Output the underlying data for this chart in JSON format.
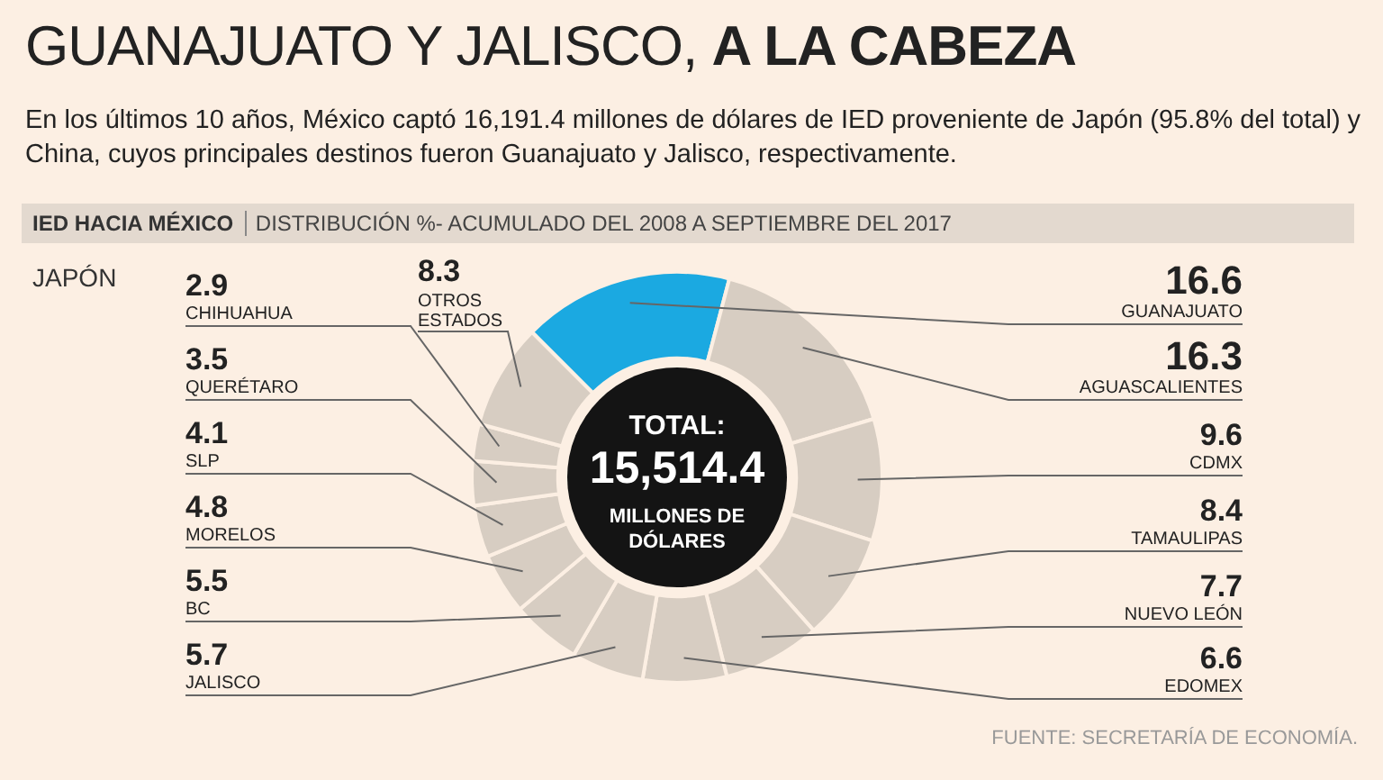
{
  "chart_data": {
    "type": "donut",
    "title": "GUANAJUATO Y JALISCO, A LA CABEZA",
    "subtitle": "En los últimos 10 años, México captó 16,191.4 millones de dólares de IED proveniente de Japón (95.8% del total) y China, cuyos principales destinos fueron Guanajuato y Jalisco, respectivamente.",
    "annotations": [
      "IED HACIA MÉXICO",
      "DISTRIBUCIÓN %- ACUMULADO DEL 2008 A SEPTIEMBRE DEL 2017",
      "JAPÓN",
      "TOTAL:",
      "15,514.4",
      "MILLONES DE DÓLARES",
      "FUENTE: SECRETARÍA DE ECONOMÍA."
    ],
    "categories": [
      "GUANAJUATO",
      "AGUASCALIENTES",
      "CDMX",
      "TAMAULIPAS",
      "NUEVO LEÓN",
      "EDOMEX",
      "JALISCO",
      "BC",
      "MORELOS",
      "SLP",
      "QUERÉTARO",
      "CHIHUAHUA",
      "OTROS ESTADOS"
    ],
    "values": [
      16.6,
      16.3,
      9.6,
      8.4,
      7.7,
      6.6,
      5.7,
      5.5,
      4.8,
      4.1,
      3.5,
      2.9,
      8.3
    ],
    "colors": [
      "#1ba9e1",
      "#d7cdc2",
      "#d7cdc2",
      "#d7cdc2",
      "#d7cdc2",
      "#d7cdc2",
      "#d7cdc2",
      "#d7cdc2",
      "#d7cdc2",
      "#d7cdc2",
      "#d7cdc2",
      "#d7cdc2",
      "#d7cdc2"
    ],
    "data_labels": true,
    "legend": false
  }
}
